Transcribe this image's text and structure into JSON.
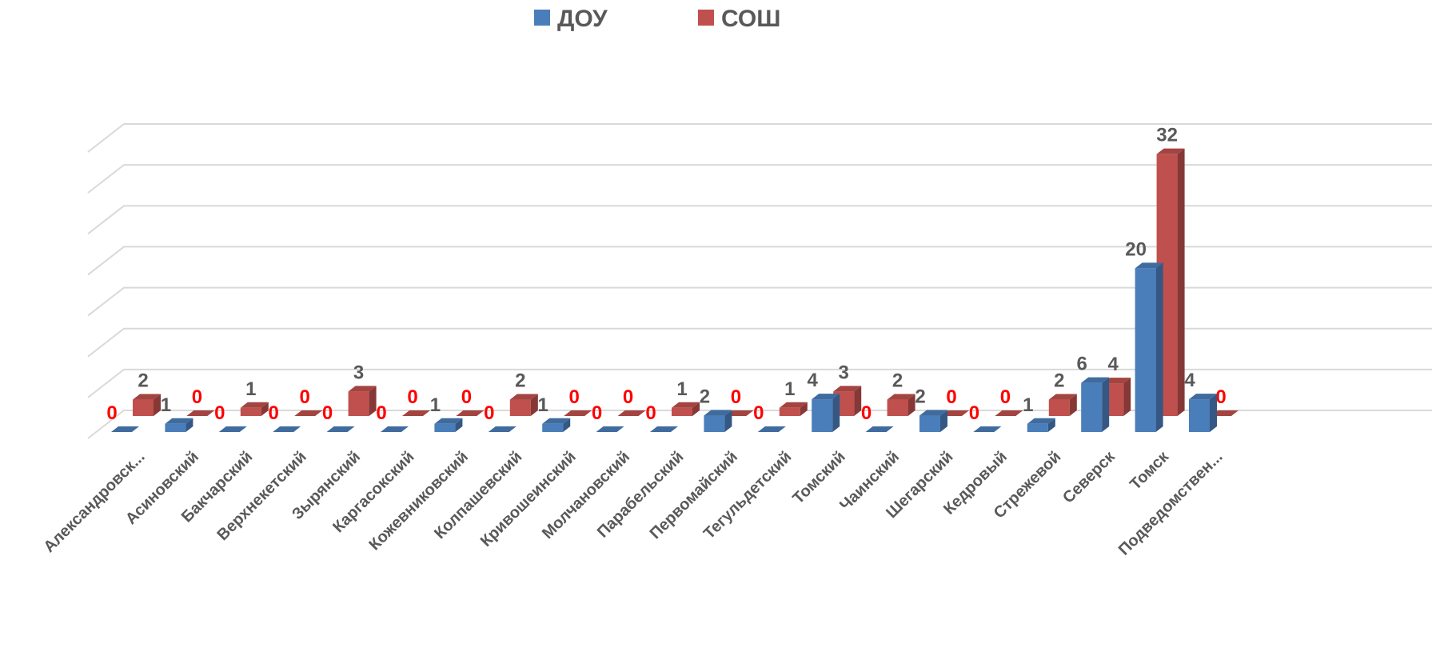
{
  "chart_data": {
    "type": "bar3d",
    "categories": [
      "Александровск...",
      "Асиновский",
      "Бакчарский",
      "Верхнекетский",
      "Зырянский",
      "Каргасокский",
      "Кожевниковский",
      "Колпашевский",
      "Кривошеинский",
      "Молчановский",
      "Парабельский",
      "Первомайский",
      "Тегульдетский",
      "Томский",
      "Чаинский",
      "Шегарский",
      "Кедровый",
      "Стрежевой",
      "Северск",
      "Томск",
      "Подведомствен..."
    ],
    "series": [
      {
        "name": "ДОУ",
        "color": "#4a7ebb",
        "values": [
          0,
          1,
          0,
          0,
          0,
          0,
          1,
          0,
          1,
          0,
          0,
          2,
          0,
          4,
          0,
          2,
          0,
          1,
          6,
          20,
          4
        ]
      },
      {
        "name": "СОШ",
        "color": "#c0504d",
        "values": [
          2,
          0,
          1,
          0,
          3,
          0,
          0,
          2,
          0,
          0,
          1,
          0,
          1,
          3,
          2,
          0,
          0,
          2,
          4,
          32,
          0
        ]
      }
    ],
    "ylim": [
      0,
      35
    ],
    "yticks": [
      0,
      5,
      10,
      15,
      20,
      25,
      30,
      35
    ],
    "grid": true,
    "legend": "top",
    "zero_label_color": "#ff0000"
  }
}
